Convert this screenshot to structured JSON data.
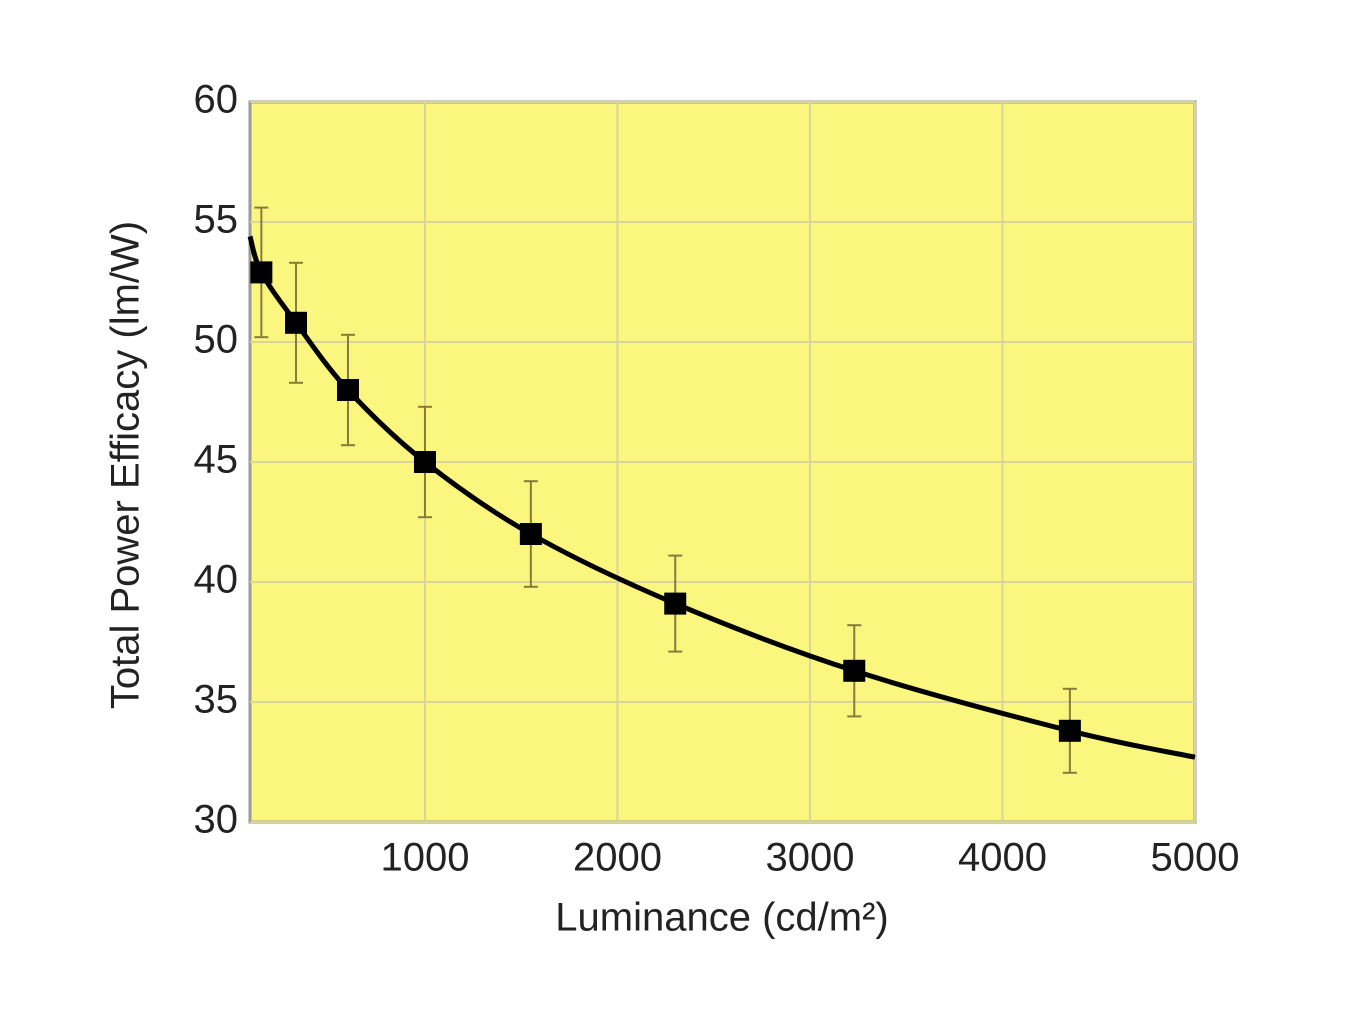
{
  "chart_data": {
    "type": "line",
    "x_label": "Luminance (cd/m²)",
    "y_label": "Total Power Efficacy (lm/W)",
    "xlim": [
      91,
      5000
    ],
    "xticks": [
      1000,
      2000,
      3000,
      4000,
      5000
    ],
    "ylim": [
      30,
      60
    ],
    "yticks": [
      30,
      35,
      40,
      45,
      50,
      55,
      60
    ],
    "grid": true,
    "background": "#fbf67e",
    "series": [
      {
        "color": "#000000",
        "x": [
          150,
          330,
          600,
          1000,
          1550,
          2300,
          3230,
          4350
        ],
        "values": [
          52.9,
          50.8,
          48.0,
          45.0,
          42.0,
          39.1,
          36.3,
          33.8
        ],
        "errors": [
          2.7,
          2.5,
          2.3,
          2.3,
          2.2,
          2.0,
          1.9,
          1.75
        ]
      }
    ],
    "fit_line": {
      "color": "#000000",
      "x": [
        91,
        150,
        330,
        600,
        1000,
        1550,
        2300,
        3230,
        4350,
        5000
      ],
      "values": [
        54.4,
        52.9,
        50.8,
        48.0,
        45.0,
        42.0,
        39.1,
        36.3,
        33.8,
        32.7
      ]
    }
  }
}
